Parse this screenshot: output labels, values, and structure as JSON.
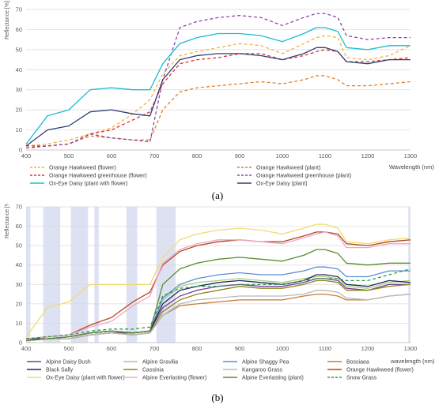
{
  "chart_data": [
    {
      "type": "line",
      "panel_label": "(a)",
      "ylabel": "Reflectance [%]",
      "xlabel": "Wavelength (nm)",
      "xlim": [
        400,
        1300
      ],
      "ylim": [
        0,
        70
      ],
      "x_ticks": [
        "400",
        "500",
        "600",
        "700",
        "800",
        "900",
        "1000",
        "1100",
        "1200",
        "1300"
      ],
      "y_ticks": [
        "0",
        "10",
        "20",
        "30",
        "40",
        "50",
        "60",
        "70"
      ],
      "grid": "horizontal",
      "legend_position": "bottom",
      "x": [
        400,
        450,
        500,
        550,
        600,
        650,
        690,
        720,
        760,
        800,
        850,
        900,
        950,
        1000,
        1050,
        1080,
        1100,
        1130,
        1150,
        1200,
        1250,
        1300
      ],
      "series": [
        {
          "name": "Orange Hawkweed (flower)",
          "color": "#f5b041",
          "dash": "4,3",
          "values": [
            2,
            3,
            5,
            8,
            11,
            18,
            25,
            38,
            47,
            49,
            51,
            53,
            52,
            48,
            53,
            56,
            57,
            56,
            46,
            45,
            47,
            52
          ]
        },
        {
          "name": "Orange Hawkweed (plant)",
          "color": "#e67e22",
          "dash": "4,3",
          "values": [
            1,
            2,
            3,
            7,
            6,
            5,
            5,
            20,
            29,
            31,
            32,
            33,
            34,
            33,
            35,
            37,
            37,
            35,
            32,
            32,
            33,
            34
          ]
        },
        {
          "name": "Orange Hawkweed greenhouse (flower)",
          "color": "#e03030",
          "dash": "4,3",
          "values": [
            2,
            2,
            3,
            8,
            10,
            15,
            19,
            33,
            43,
            45,
            46,
            48,
            48,
            45,
            47,
            49,
            50,
            49,
            44,
            44,
            45,
            46
          ]
        },
        {
          "name": "Orange Hawkweed greenhouse (plant)",
          "color": "#8e44ad",
          "dash": "4,3",
          "values": [
            1,
            2,
            3,
            8,
            6,
            5,
            4,
            35,
            61,
            64,
            66,
            67,
            66,
            62,
            66,
            68,
            68,
            66,
            57,
            55,
            56,
            56
          ]
        },
        {
          "name": "Ox-Eye Daisy (plant with flower)",
          "color": "#1abcd4",
          "dash": "",
          "values": [
            3,
            17,
            20,
            30,
            31,
            30,
            30,
            43,
            53,
            56,
            58,
            58,
            57,
            54,
            58,
            61,
            61,
            59,
            51,
            50,
            52,
            52
          ]
        },
        {
          "name": "Ox-Eye Daisy (plant)",
          "color": "#2c3e73",
          "dash": "",
          "values": [
            2,
            10,
            12,
            19,
            20,
            18,
            17,
            35,
            45,
            47,
            48,
            48,
            47,
            45,
            48,
            51,
            51,
            49,
            44,
            43,
            45,
            45
          ]
        }
      ]
    },
    {
      "type": "line",
      "panel_label": "(b)",
      "ylabel": "Reflectance [%]",
      "xlabel": "wavelength (nm)",
      "xlim": [
        400,
        1300
      ],
      "ylim": [
        0,
        70
      ],
      "x_ticks": [
        "400",
        "500",
        "600",
        "700",
        "800",
        "900",
        "1000",
        "1100",
        "1200",
        "1300"
      ],
      "y_ticks": [
        "0",
        "10",
        "20",
        "30",
        "40",
        "50",
        "60",
        "70"
      ],
      "grid": "horizontal",
      "legend_position": "bottom",
      "x": [
        400,
        450,
        500,
        550,
        600,
        650,
        690,
        720,
        760,
        800,
        850,
        900,
        950,
        1000,
        1050,
        1080,
        1100,
        1130,
        1150,
        1200,
        1250,
        1300
      ],
      "shaded_bands": [
        [
          400,
          410
        ],
        [
          440,
          480
        ],
        [
          505,
          545
        ],
        [
          560,
          570
        ],
        [
          635,
          660
        ],
        [
          705,
          750
        ],
        [
          1295,
          1300
        ]
      ],
      "series": [
        {
          "name": "Alpine Daisy Bush",
          "color": "#7d3c98",
          "dash": "",
          "values": [
            1,
            2,
            2,
            4,
            5,
            5,
            6,
            18,
            24,
            27,
            29,
            30,
            29,
            29,
            31,
            33,
            33,
            32,
            28,
            27,
            30,
            30
          ]
        },
        {
          "name": "Alpine Gravilia",
          "color": "#a9cf7a",
          "dash": "",
          "values": [
            2,
            2,
            3,
            5,
            6,
            5,
            6,
            22,
            29,
            31,
            32,
            33,
            32,
            31,
            33,
            34,
            34,
            33,
            29,
            28,
            31,
            32
          ]
        },
        {
          "name": "Alpine Shaggy Pea",
          "color": "#5b8fd0",
          "dash": "",
          "values": [
            2,
            2,
            3,
            5,
            6,
            5,
            6,
            23,
            30,
            33,
            35,
            36,
            35,
            35,
            37,
            39,
            39,
            38,
            34,
            34,
            37,
            37
          ]
        },
        {
          "name": "Bossiaea",
          "color": "#c97a38",
          "dash": "",
          "values": [
            1,
            2,
            2,
            4,
            5,
            4,
            5,
            14,
            19,
            20,
            21,
            22,
            22,
            22,
            24,
            25,
            25,
            24,
            22,
            22,
            24,
            25
          ]
        },
        {
          "name": "Black Sally",
          "color": "#1f2a5c",
          "dash": "",
          "values": [
            2,
            2,
            3,
            5,
            6,
            5,
            6,
            20,
            27,
            29,
            31,
            32,
            31,
            30,
            32,
            35,
            35,
            34,
            30,
            29,
            32,
            31
          ]
        },
        {
          "name": "Cassinia",
          "color": "#8a8a1c",
          "dash": "",
          "values": [
            1,
            2,
            2,
            4,
            5,
            4,
            5,
            16,
            22,
            25,
            27,
            29,
            28,
            28,
            30,
            32,
            32,
            31,
            27,
            27,
            29,
            30
          ]
        },
        {
          "name": "Kangaroo Grass",
          "color": "#b8b8b8",
          "dash": "",
          "values": [
            1,
            2,
            2,
            4,
            5,
            4,
            5,
            14,
            20,
            22,
            23,
            24,
            24,
            24,
            25,
            27,
            27,
            26,
            23,
            22,
            24,
            25
          ]
        },
        {
          "name": "Orange Hawkweed (flower)",
          "color": "#b5451b",
          "dash": "",
          "values": [
            2,
            3,
            4,
            9,
            13,
            21,
            26,
            40,
            47,
            50,
            52,
            53,
            52,
            52,
            55,
            57,
            57,
            56,
            51,
            50,
            52,
            53
          ]
        },
        {
          "name": "Ox-Eye Daisy (plant with flower)",
          "color": "#f2dc6a",
          "dash": "",
          "values": [
            3,
            18,
            21,
            30,
            30,
            30,
            30,
            44,
            53,
            56,
            58,
            59,
            58,
            56,
            59,
            61,
            61,
            59,
            52,
            51,
            53,
            54
          ]
        },
        {
          "name": "Alpine Everlasting (flower)",
          "color": "#f0a8c8",
          "dash": "",
          "values": [
            2,
            3,
            4,
            8,
            11,
            19,
            24,
            41,
            48,
            51,
            53,
            53,
            52,
            51,
            54,
            56,
            57,
            55,
            49,
            49,
            51,
            51
          ]
        },
        {
          "name": "Alpine Everlasting (plant)",
          "color": "#5f8a2e",
          "dash": "",
          "values": [
            1,
            2,
            3,
            5,
            6,
            5,
            6,
            30,
            38,
            41,
            43,
            44,
            43,
            42,
            45,
            48,
            48,
            46,
            41,
            40,
            41,
            41
          ]
        },
        {
          "name": "Snow Grass",
          "color": "#2e9a5a",
          "dash": "4,3",
          "values": [
            2,
            3,
            4,
            6,
            7,
            7,
            8,
            24,
            28,
            29,
            29,
            30,
            30,
            30,
            32,
            33,
            33,
            33,
            32,
            32,
            35,
            38
          ]
        }
      ]
    }
  ]
}
